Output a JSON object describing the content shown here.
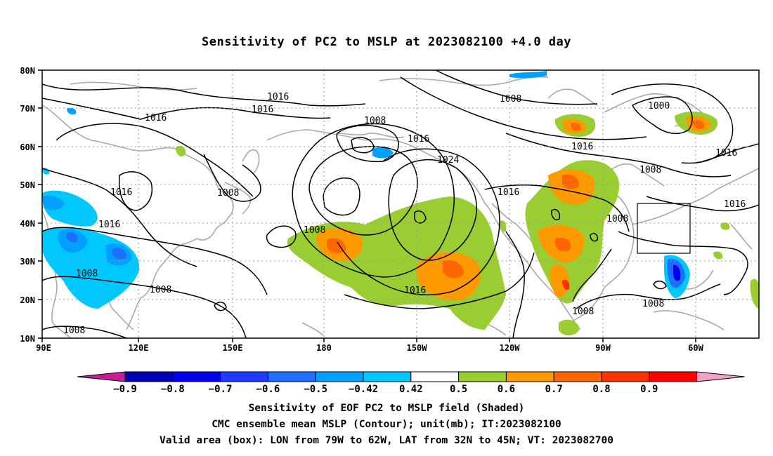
{
  "title": "Sensitivity of PC2 to MSLP at 2023082100 +4.0 day",
  "axes": {
    "lat_labels": [
      "80N",
      "70N",
      "60N",
      "50N",
      "40N",
      "30N",
      "20N",
      "10N"
    ],
    "lon_labels": [
      "90E",
      "120E",
      "150E",
      "180",
      "150W",
      "120W",
      "90W",
      "60W"
    ]
  },
  "contour_labels": [
    {
      "text": "1016"
    },
    {
      "text": "1016"
    },
    {
      "text": "1016"
    },
    {
      "text": "1008"
    },
    {
      "text": "1016"
    },
    {
      "text": "1008"
    },
    {
      "text": "1016"
    },
    {
      "text": "1016"
    },
    {
      "text": "1024"
    },
    {
      "text": "1016"
    },
    {
      "text": "1008"
    },
    {
      "text": "1008"
    },
    {
      "text": "1016"
    },
    {
      "text": "1008"
    },
    {
      "text": "1008"
    },
    {
      "text": "1000"
    },
    {
      "text": "1016"
    },
    {
      "text": "1016"
    },
    {
      "text": "1008"
    },
    {
      "text": "1008"
    },
    {
      "text": "1008"
    },
    {
      "text": "1008"
    },
    {
      "text": "1008"
    }
  ],
  "colorbar": {
    "labels": [
      "−0.9",
      "−0.8",
      "−0.7",
      "−0.6",
      "−0.5",
      "−0.42",
      "0.42",
      "0.5",
      "0.6",
      "0.7",
      "0.8",
      "0.9"
    ],
    "colors": [
      "#0000b4",
      "#0000f0",
      "#1e3cff",
      "#1e6eff",
      "#00a0ff",
      "#00c8ff",
      "#ffffff",
      "#9acd32",
      "#ff9900",
      "#ff6600",
      "#ff3300",
      "#ff0000"
    ],
    "low_extend_color": "#c41e96",
    "high_extend_color": "#f4a0c8"
  },
  "captions": {
    "line1": "Sensitivity of EOF PC2 to MSLP field (Shaded)",
    "line2": "CMC ensemble mean MSLP (Contour); unit(mb); IT:2023082100",
    "line3": "Valid area (box): LON from 79W to 62W, LAT from 32N to 45N; VT: 2023082700"
  }
}
